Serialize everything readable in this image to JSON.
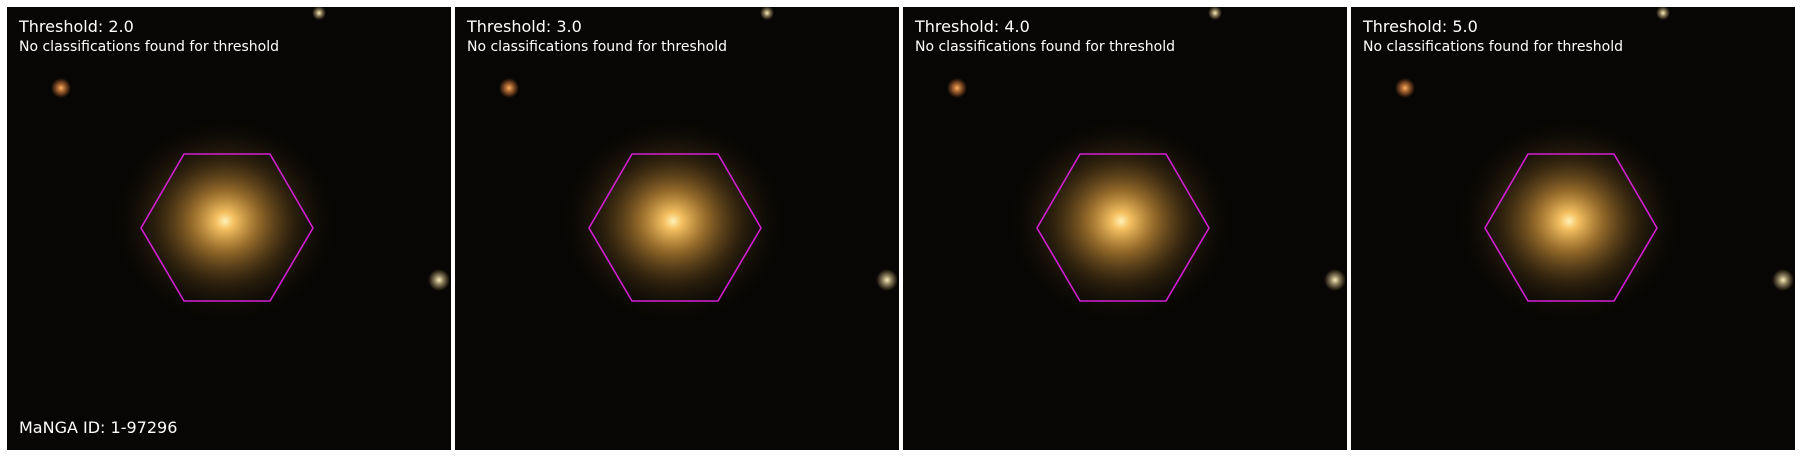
{
  "panels": [
    {
      "title": "Threshold: 2.0",
      "subtitle": "No classifications found for threshold"
    },
    {
      "title": "Threshold: 3.0",
      "subtitle": "No classifications found for threshold"
    },
    {
      "title": "Threshold: 4.0",
      "subtitle": "No classifications found for threshold"
    },
    {
      "title": "Threshold: 5.0",
      "subtitle": "No classifications found for threshold"
    }
  ],
  "manga_id_label": "MaNGA ID: 1-97296",
  "colors": {
    "background": "#070604",
    "hexagon": "#d21fd2",
    "galaxy_core": "#fff0b0",
    "galaxy_halo": "#b88a3a",
    "text": "#ffffff"
  }
}
